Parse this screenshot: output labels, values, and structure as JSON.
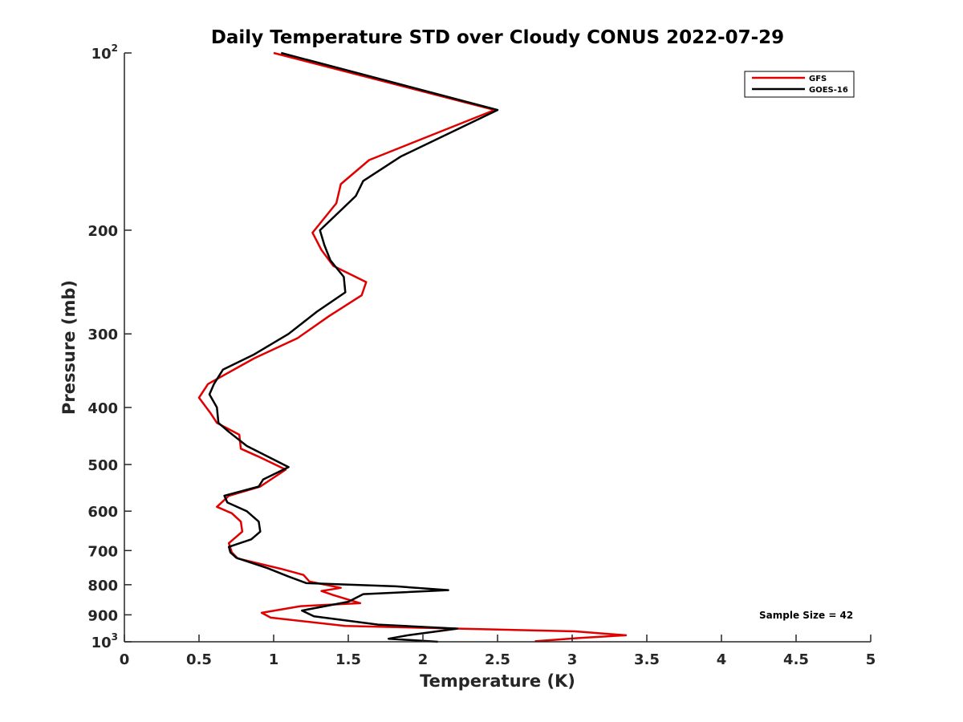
{
  "chart_data": {
    "type": "line",
    "title": "Daily Temperature STD over Cloudy CONUS 2022-07-29",
    "xlabel": "Temperature (K)",
    "ylabel": "Pressure (mb)",
    "xlim": [
      0,
      5
    ],
    "ylim": [
      100,
      1000
    ],
    "y_scale": "log",
    "y_reversed": true,
    "x_ticks": [
      0,
      0.5,
      1,
      1.5,
      2,
      2.5,
      3,
      3.5,
      4,
      4.5,
      5
    ],
    "x_tick_labels": [
      "0",
      "0.5",
      "1",
      "1.5",
      "2",
      "2.5",
      "3",
      "3.5",
      "4",
      "4.5",
      "5"
    ],
    "y_ticks": [
      {
        "value": 100,
        "base": "10",
        "exp": "2"
      },
      {
        "value": 200,
        "label": "200"
      },
      {
        "value": 300,
        "label": "300"
      },
      {
        "value": 400,
        "label": "400"
      },
      {
        "value": 500,
        "label": "500"
      },
      {
        "value": 600,
        "label": "600"
      },
      {
        "value": 700,
        "label": "700"
      },
      {
        "value": 800,
        "label": "800"
      },
      {
        "value": 900,
        "label": "900"
      },
      {
        "value": 1000,
        "base": "10",
        "exp": "3"
      }
    ],
    "grid": false,
    "legend_position": "top-right",
    "annotation": "Sample Size = 42",
    "series": [
      {
        "name": "GFS",
        "color": "#e00000",
        "points": [
          [
            1.0,
            100
          ],
          [
            2.48,
            125
          ],
          [
            1.64,
            152
          ],
          [
            1.45,
            167
          ],
          [
            1.42,
            180
          ],
          [
            1.26,
            202
          ],
          [
            1.32,
            216
          ],
          [
            1.4,
            230
          ],
          [
            1.62,
            245
          ],
          [
            1.59,
            258
          ],
          [
            1.37,
            280
          ],
          [
            1.16,
            305
          ],
          [
            0.87,
            330
          ],
          [
            0.56,
            365
          ],
          [
            0.5,
            385
          ],
          [
            0.58,
            410
          ],
          [
            0.62,
            425
          ],
          [
            0.77,
            445
          ],
          [
            0.78,
            470
          ],
          [
            0.9,
            485
          ],
          [
            1.08,
            510
          ],
          [
            0.91,
            545
          ],
          [
            0.7,
            565
          ],
          [
            0.62,
            590
          ],
          [
            0.72,
            605
          ],
          [
            0.78,
            625
          ],
          [
            0.79,
            650
          ],
          [
            0.7,
            680
          ],
          [
            0.72,
            705
          ],
          [
            0.76,
            722
          ],
          [
            1.05,
            752
          ],
          [
            1.2,
            770
          ],
          [
            1.24,
            790
          ],
          [
            1.45,
            810
          ],
          [
            1.32,
            820
          ],
          [
            1.4,
            833
          ],
          [
            1.58,
            860
          ],
          [
            1.18,
            870
          ],
          [
            0.92,
            893
          ],
          [
            0.98,
            910
          ],
          [
            1.48,
            940
          ],
          [
            3.02,
            960
          ],
          [
            3.36,
            975
          ],
          [
            3.05,
            985
          ],
          [
            2.75,
            998
          ]
        ]
      },
      {
        "name": "GOES-16",
        "color": "#000000",
        "points": [
          [
            1.05,
            100
          ],
          [
            2.5,
            125
          ],
          [
            1.85,
            150
          ],
          [
            1.6,
            165
          ],
          [
            1.55,
            175
          ],
          [
            1.31,
            200
          ],
          [
            1.34,
            212
          ],
          [
            1.38,
            225
          ],
          [
            1.47,
            240
          ],
          [
            1.48,
            255
          ],
          [
            1.29,
            275
          ],
          [
            1.1,
            300
          ],
          [
            0.87,
            325
          ],
          [
            0.66,
            345
          ],
          [
            0.6,
            365
          ],
          [
            0.57,
            380
          ],
          [
            0.62,
            400
          ],
          [
            0.63,
            425
          ],
          [
            0.7,
            440
          ],
          [
            0.82,
            465
          ],
          [
            1.1,
            505
          ],
          [
            0.93,
            530
          ],
          [
            0.9,
            545
          ],
          [
            0.67,
            565
          ],
          [
            0.69,
            580
          ],
          [
            0.82,
            600
          ],
          [
            0.9,
            625
          ],
          [
            0.91,
            650
          ],
          [
            0.85,
            670
          ],
          [
            0.7,
            690
          ],
          [
            0.71,
            705
          ],
          [
            0.75,
            720
          ],
          [
            0.96,
            750
          ],
          [
            1.1,
            775
          ],
          [
            1.22,
            795
          ],
          [
            1.82,
            805
          ],
          [
            2.17,
            817
          ],
          [
            1.6,
            830
          ],
          [
            1.5,
            855
          ],
          [
            1.19,
            885
          ],
          [
            1.27,
            905
          ],
          [
            1.7,
            935
          ],
          [
            2.23,
            950
          ],
          [
            1.9,
            975
          ],
          [
            1.77,
            988
          ],
          [
            2.1,
            1000
          ]
        ]
      }
    ]
  }
}
